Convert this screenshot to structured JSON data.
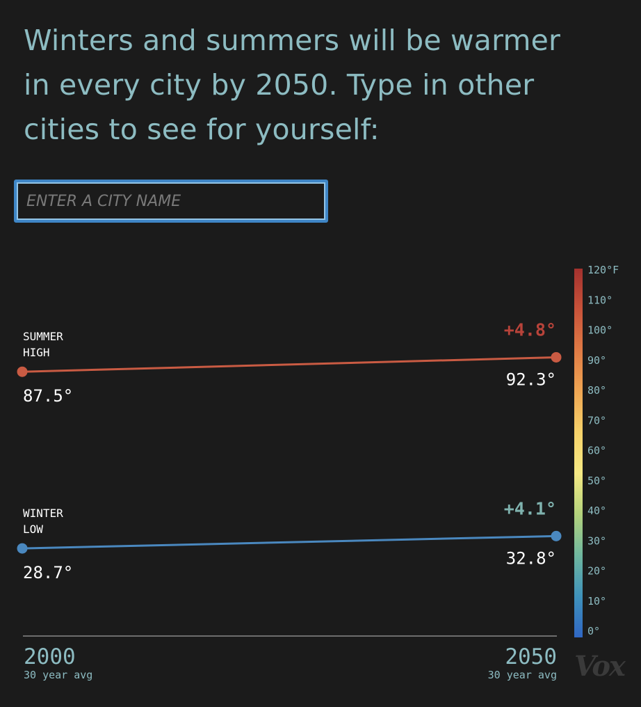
{
  "headline": "Winters and summers will be warmer in every city by 2050. Type in other cities to see for yourself:",
  "search": {
    "placeholder": "ENTER A CITY NAME"
  },
  "chart_data": {
    "type": "line",
    "x": [
      2000,
      2050
    ],
    "series": [
      {
        "name": "Summer High",
        "label_lines": [
          "SUMMER",
          "HIGH"
        ],
        "values": [
          87.5,
          92.3
        ],
        "start_label": "87.5°",
        "end_label": "92.3°",
        "change_label": "+4.8°",
        "color": "#c95b43",
        "change_color": "#b8433a"
      },
      {
        "name": "Winter Low",
        "label_lines": [
          "WINTER",
          "LOW"
        ],
        "values": [
          28.7,
          32.8
        ],
        "start_label": "28.7°",
        "end_label": "32.8°",
        "change_label": "+4.1°",
        "color": "#4a88bf",
        "change_color": "#7fb2ae"
      }
    ],
    "x_axis": {
      "start_year": "2000",
      "start_sub": "30 year avg",
      "end_year": "2050",
      "end_sub": "30 year avg"
    },
    "color_scale": {
      "range": [
        0,
        120
      ],
      "ticks": [
        "120°F",
        "110°",
        "100°",
        "90°",
        "80°",
        "70°",
        "60°",
        "50°",
        "40°",
        "30°",
        "20°",
        "10°",
        "0°"
      ],
      "stops": [
        "#a3312e",
        "#c9533a",
        "#e07b45",
        "#efa653",
        "#f6d26a",
        "#f5e984",
        "#b3d27c",
        "#6fb79f",
        "#3f92bb",
        "#3067c4"
      ]
    }
  },
  "logo": "Vox",
  "colors": {
    "background": "#1b1b1b",
    "headline": "#8dbcc2",
    "axis_text": "#8dbcc2",
    "value_text": "#ffffff"
  }
}
